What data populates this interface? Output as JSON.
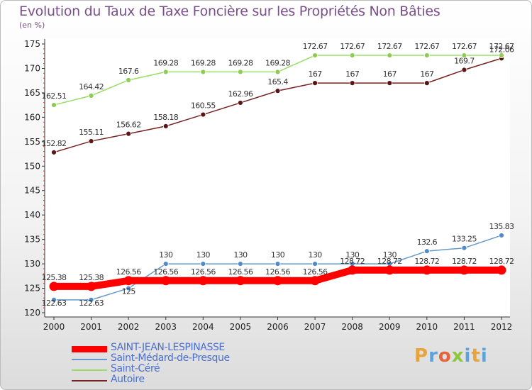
{
  "title": "Evolution du Taux de Taxe Foncière sur les Propriétés Non Bâties",
  "unit_label": "(en %)",
  "brand": "Proxiti",
  "brand_colors": [
    "#e8a33a",
    "#5fa2d8",
    "#e8623a",
    "#8dc63f",
    "#5fa2d8",
    "#e8a33a",
    "#5fa2d8"
  ],
  "chart_data": {
    "type": "line",
    "title": "Evolution du Taux de Taxe Foncière sur les Propriétés Non Bâties",
    "ylabel": "(en %)",
    "xlabel": "",
    "x": [
      "2000",
      "2001",
      "2002",
      "2003",
      "2004",
      "2005",
      "2006",
      "2007",
      "2008",
      "2009",
      "2010",
      "2011",
      "2012"
    ],
    "ylim": [
      120,
      175
    ],
    "yticks": [
      120,
      125,
      130,
      135,
      140,
      145,
      150,
      155,
      160,
      165,
      170,
      175
    ],
    "series": [
      {
        "name": "SAINT-JEAN-LESPINASSE",
        "color": "#ff0000",
        "values": [
          125.38,
          125.38,
          126.56,
          126.56,
          126.56,
          126.56,
          126.56,
          126.56,
          128.72,
          128.72,
          128.72,
          128.72,
          128.72
        ],
        "labels": [
          "125.38",
          "125.38",
          "126.56",
          "126.56",
          "126.56",
          "126.56",
          "126.56",
          "126.56",
          "128.72",
          "128.72",
          "128.72",
          "128.72",
          "128.72"
        ]
      },
      {
        "name": "Saint-Médard-de-Presque",
        "color": "#6699cc",
        "values": [
          122.63,
          122.63,
          125,
          130,
          130,
          130,
          130,
          130,
          130,
          130,
          132.6,
          133.25,
          135.83
        ],
        "labels": [
          "122.63",
          "122.63",
          "125",
          "130",
          "130",
          "130",
          "130",
          "130",
          "130",
          "130",
          "132.6",
          "133.25",
          "135.83"
        ]
      },
      {
        "name": "Saint-Céré",
        "color": "#99dd66",
        "values": [
          162.51,
          164.42,
          167.6,
          169.28,
          169.28,
          169.28,
          169.28,
          172.67,
          172.67,
          172.67,
          172.67,
          172.67,
          172.67
        ],
        "labels": [
          "162.51",
          "164.42",
          "167.6",
          "169.28",
          "169.28",
          "169.28",
          "169.28",
          "172.67",
          "172.67",
          "172.67",
          "172.67",
          "172.67",
          "172.67"
        ]
      },
      {
        "name": "Autoire",
        "color": "#772222",
        "values": [
          152.82,
          155.11,
          156.62,
          158.18,
          160.55,
          162.96,
          165.4,
          167,
          167,
          167,
          167,
          169.7,
          172.06
        ],
        "labels": [
          "152.82",
          "155.11",
          "156.62",
          "158.18",
          "160.55",
          "162.96",
          "165.4",
          "167",
          "167",
          "167",
          "167",
          "169.7",
          "172.06"
        ]
      }
    ]
  }
}
